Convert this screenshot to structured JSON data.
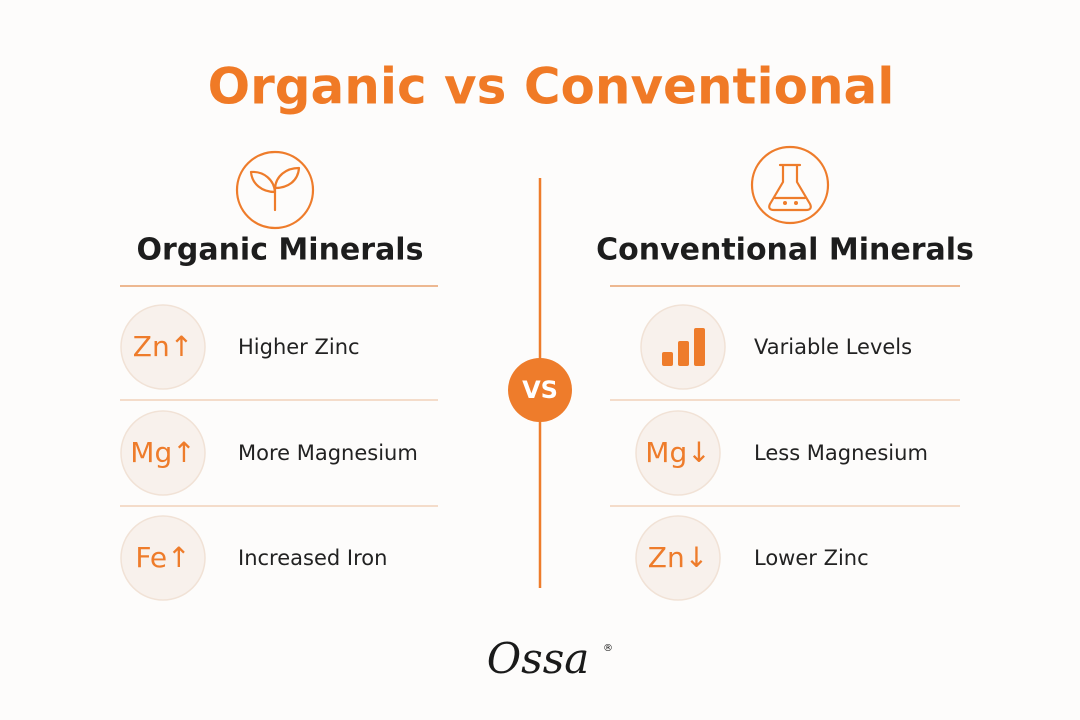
{
  "header": {
    "title": "Organic vs Conventional"
  },
  "divider": {
    "label": "VS"
  },
  "left": {
    "heading": "Organic Minerals",
    "items": [
      {
        "icon": "Zn↑",
        "text": "Higher Zinc"
      },
      {
        "icon": "Mg↑",
        "text": "More Magnesium"
      },
      {
        "icon": "Fe↑",
        "text": "Increased Iron"
      }
    ]
  },
  "right": {
    "heading": "Conventional Minerals",
    "items": [
      {
        "text": "Variable Levels"
      },
      {
        "icon": "Mg↓",
        "text": "Less Magnesium"
      },
      {
        "icon": "Zn↓",
        "text": "Lower Zinc"
      }
    ]
  },
  "footer": {
    "logo": "Ossa",
    "logo_mark": "®"
  }
}
